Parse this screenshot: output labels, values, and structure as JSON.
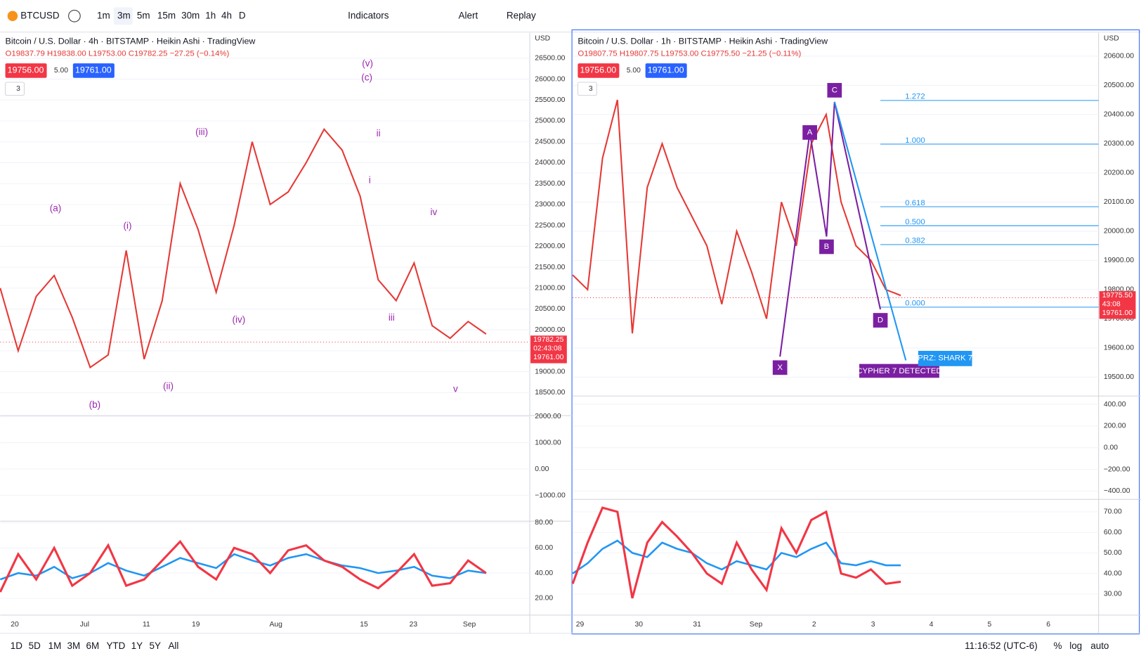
{
  "toolbar": {
    "symbol": "BTCUSD",
    "intervals": [
      "1m",
      "3m",
      "5m",
      "15m",
      "30m",
      "1h",
      "4h",
      "D"
    ],
    "indicators": "Indicators",
    "alert": "Alert",
    "replay": "Replay"
  },
  "panes": [
    {
      "title": "Bitcoin / U.S. Dollar · 4h · BITSTAMP · Heikin Ashi · TradingView",
      "ohlc": "O19837.79 H19838.00 L19753.00 C19782.25 −27.25 (−0.14%)",
      "bid": "19756.00",
      "spread": "5.00",
      "ask": "19761.00",
      "count": "3",
      "currency": "USD",
      "chart_data": {
        "type": "line",
        "ylim": [
          17965,
          27110
        ],
        "yticks": [
          {
            "value": 26500,
            "label": "26500.00"
          },
          {
            "value": 26000,
            "label": "26000.00"
          },
          {
            "value": 25500,
            "label": "25500.00"
          },
          {
            "value": 25000,
            "label": "25000.00"
          },
          {
            "value": 24500,
            "label": "24500.00"
          },
          {
            "value": 24000,
            "label": "24000.00"
          },
          {
            "value": 23500,
            "label": "23500.00"
          },
          {
            "value": 23000,
            "label": "23000.00"
          },
          {
            "value": 22500,
            "label": "22500.00"
          },
          {
            "value": 22000,
            "label": "22000.00"
          },
          {
            "value": 21500,
            "label": "21500.00"
          },
          {
            "value": 21000,
            "label": "21000.00"
          },
          {
            "value": 20500,
            "label": "20500.00"
          },
          {
            "value": 20000,
            "label": "20000.00"
          },
          {
            "value": 19500,
            "label": "19500.00"
          },
          {
            "value": 19000,
            "label": "19000.00"
          },
          {
            "value": 18500,
            "label": "18500.00"
          }
        ],
        "series": [
          {
            "color": "#e53935",
            "values": [
              21000,
              19500,
              20800,
              21300,
              20300,
              19100,
              19400,
              21900,
              19300,
              20700,
              23500,
              22400,
              20900,
              22500,
              24500,
              23000,
              23300,
              24000,
              24800,
              24300,
              23200,
              21200,
              20700,
              21600,
              20100,
              19800,
              20200,
              19900
            ]
          }
        ],
        "x_labels": [
          "20",
          "Jul",
          "11",
          "19",
          "Aug",
          "15",
          "23",
          "Sep"
        ]
      },
      "price_labels": [
        "19782.25",
        "02:43:08",
        "19761.00"
      ],
      "osc": {
        "ylim": [
          -1950,
          2000
        ],
        "yticks": [
          {
            "value": 2000,
            "label": "2000.00"
          },
          {
            "value": 1000,
            "label": "1000.00"
          },
          {
            "value": 0,
            "label": "0.00"
          },
          {
            "value": -1000,
            "label": "−1000.00"
          }
        ]
      },
      "rsi": {
        "ylim": [
          6.7,
          80.6
        ],
        "yticks": [
          {
            "value": 80,
            "label": "80.00"
          },
          {
            "value": 60,
            "label": "60.00"
          },
          {
            "value": 40,
            "label": "40.00"
          },
          {
            "value": 20,
            "label": "20.00"
          }
        ],
        "series": [
          {
            "color": "#2196f3",
            "values": [
              35,
              40,
              38,
              45,
              36,
              40,
              48,
              42,
              38,
              45,
              52,
              48,
              44,
              55,
              50,
              46,
              52,
              55,
              50,
              46,
              44,
              40,
              42,
              45,
              38,
              36,
              42,
              40
            ]
          },
          {
            "color": "#f23645",
            "values": [
              25,
              55,
              35,
              60,
              30,
              40,
              62,
              30,
              35,
              50,
              65,
              45,
              35,
              60,
              55,
              40,
              58,
              62,
              50,
              45,
              35,
              28,
              40,
              55,
              30,
              32,
              50,
              40
            ]
          }
        ]
      },
      "annotations": [
        "(a)",
        "(b)",
        "(i)",
        "(ii)",
        "(iii)",
        "(iv)",
        "(v)",
        "(c)",
        "ii",
        "i",
        "iii",
        "iv",
        "v"
      ]
    },
    {
      "title": "Bitcoin / U.S. Dollar · 1h · BITSTAMP · Heikin Ashi · TradingView",
      "ohlc": "O19807.75 H19807.75 L19753.00 C19775.50 −21.25 (−0.11%)",
      "bid": "19756.00",
      "spread": "5.00",
      "ask": "19761.00",
      "count": "3",
      "currency": "USD",
      "chart_data": {
        "type": "line",
        "ylim": [
          19438,
          20680
        ],
        "yticks": [
          {
            "value": 20600,
            "label": "20600.00"
          },
          {
            "value": 20500,
            "label": "20500.00"
          },
          {
            "value": 20400,
            "label": "20400.00"
          },
          {
            "value": 20300,
            "label": "20300.00"
          },
          {
            "value": 20200,
            "label": "20200.00"
          },
          {
            "value": 20100,
            "label": "20100.00"
          },
          {
            "value": 20000,
            "label": "20000.00"
          },
          {
            "value": 19900,
            "label": "19900.00"
          },
          {
            "value": 19800,
            "label": "19800.00"
          },
          {
            "value": 19700,
            "label": "19700.00"
          },
          {
            "value": 19600,
            "label": "19600.00"
          },
          {
            "value": 19500,
            "label": "19500.00"
          }
        ],
        "series": [
          {
            "color": "#e53935",
            "values": [
              19850,
              19800,
              20250,
              20450,
              19650,
              20150,
              20300,
              20150,
              20050,
              19950,
              19750,
              20000,
              19860,
              19700,
              20100,
              19950,
              20300,
              20400,
              20100,
              19950,
              19900,
              19800,
              19780
            ]
          }
        ],
        "x_labels": [
          "29",
          "30",
          "31",
          "Sep",
          "2",
          "3",
          "4",
          "5",
          "6"
        ]
      },
      "price_labels": [
        "19775.50",
        "43:08",
        "19761.00"
      ],
      "osc": {
        "ylim": [
          -470,
          470
        ],
        "yticks": [
          {
            "value": 400,
            "label": "400.00"
          },
          {
            "value": 200,
            "label": "200.00"
          },
          {
            "value": 0,
            "label": "0.00"
          },
          {
            "value": -200,
            "label": "−200.00"
          },
          {
            "value": -400,
            "label": "−400.00"
          }
        ]
      },
      "rsi": {
        "ylim": [
          19.8,
          75.7
        ],
        "yticks": [
          {
            "value": 70,
            "label": "70.00"
          },
          {
            "value": 60,
            "label": "60.00"
          },
          {
            "value": 50,
            "label": "50.00"
          },
          {
            "value": 40,
            "label": "40.00"
          },
          {
            "value": 30,
            "label": "30.00"
          }
        ],
        "series": [
          {
            "color": "#2196f3",
            "values": [
              40,
              45,
              52,
              56,
              50,
              48,
              55,
              52,
              50,
              45,
              42,
              46,
              44,
              42,
              50,
              48,
              52,
              55,
              45,
              44,
              46,
              44,
              44
            ]
          },
          {
            "color": "#f23645",
            "values": [
              35,
              55,
              72,
              70,
              28,
              55,
              65,
              58,
              50,
              40,
              35,
              55,
              42,
              32,
              62,
              50,
              66,
              70,
              40,
              38,
              42,
              35,
              36
            ]
          }
        ]
      },
      "fib": [
        "1.272",
        "1.000",
        "0.618",
        "0.500",
        "0.382",
        "0.000"
      ],
      "pattern": [
        "X",
        "A",
        "B",
        "C",
        "D"
      ],
      "cypher": "CYPHER 7 DETECTED",
      "prz": "PRZ: SHARK 7"
    }
  ],
  "bottom": {
    "ranges": [
      "1D",
      "5D",
      "1M",
      "3M",
      "6M",
      "YTD",
      "1Y",
      "5Y",
      "All"
    ],
    "time": "11:16:52 (UTC-6)",
    "pct": "%",
    "log": "log",
    "auto": "auto"
  }
}
